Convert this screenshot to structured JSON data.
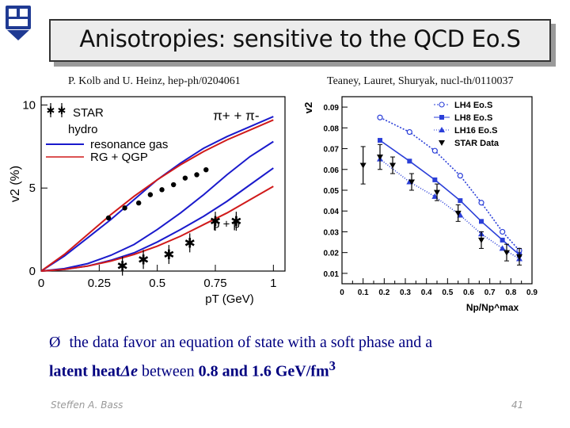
{
  "slide": {
    "title": "Anisotropies: sensitive to the QCD Eo.S",
    "cite_left": "P. Kolb and U. Heinz, hep-ph/0204061",
    "cite_right": "Teaney, Lauret, Shuryak, nucl-th/0110037",
    "caption": {
      "bullet": "Ø",
      "part1": "the data favor an equation of state with a soft phase and a",
      "part2a": "latent heat",
      "part2b": "Δe",
      "part2c": " between ",
      "part2d": "0.8 and 1.6 GeV/fm",
      "part2e": "3"
    },
    "footer_name": "Steffen A. Bass",
    "footer_page": "41"
  },
  "colors": {
    "title_text": "#111111",
    "caption": "#000080",
    "resonance_gas": "#1a1acc",
    "rg_qgp": "#d01a1a",
    "right_series": "#2b3fd8"
  },
  "chart_data": [
    {
      "type": "line",
      "ylabel": "v2 (%)",
      "xlabel": "pT (GeV)",
      "xlim": [
        0,
        1.05
      ],
      "ylim": [
        0,
        10.5
      ],
      "xticks": [
        {
          "v": 0,
          "label": "0"
        },
        {
          "v": 0.25,
          "label": "0.25"
        },
        {
          "v": 0.5,
          "label": "0.5"
        },
        {
          "v": 0.75,
          "label": "0.75"
        },
        {
          "v": 1.0,
          "label": "1"
        }
      ],
      "yticks": [
        {
          "v": 0,
          "label": "0"
        },
        {
          "v": 5,
          "label": "5"
        },
        {
          "v": 10,
          "label": "10"
        }
      ],
      "legend_title": "hydro",
      "legend_entries": [
        "STAR",
        "resonance gas",
        "RG + QGP"
      ],
      "annotations": [
        "π+ + π-",
        "p + p̄"
      ],
      "series": [
        {
          "name": "resonance gas",
          "kind": "pion",
          "style": "blue",
          "x": [
            0,
            0.1,
            0.2,
            0.3,
            0.4,
            0.5,
            0.6,
            0.7,
            0.8,
            0.9,
            1.0
          ],
          "y": [
            0,
            0.9,
            2.0,
            3.1,
            4.3,
            5.5,
            6.5,
            7.4,
            8.1,
            8.7,
            9.3
          ]
        },
        {
          "name": "RG + QGP",
          "kind": "pion",
          "style": "red",
          "x": [
            0,
            0.1,
            0.2,
            0.3,
            0.4,
            0.5,
            0.6,
            0.7,
            0.8,
            0.9,
            1.0
          ],
          "y": [
            0,
            1.0,
            2.2,
            3.4,
            4.5,
            5.5,
            6.4,
            7.2,
            7.9,
            8.5,
            9.1
          ]
        },
        {
          "name": "resonance gas",
          "kind": "proton",
          "style": "blue",
          "x": [
            0,
            0.1,
            0.2,
            0.3,
            0.4,
            0.5,
            0.6,
            0.7,
            0.8,
            0.9,
            1.0
          ],
          "y": [
            0,
            0.15,
            0.45,
            0.95,
            1.6,
            2.5,
            3.5,
            4.6,
            5.8,
            6.9,
            7.8
          ]
        },
        {
          "name": "resonance gas",
          "kind": "proton2",
          "style": "blue",
          "x": [
            0,
            0.1,
            0.2,
            0.3,
            0.4,
            0.5,
            0.6,
            0.7,
            0.8,
            0.9,
            1.0
          ],
          "y": [
            0,
            0.1,
            0.3,
            0.65,
            1.1,
            1.75,
            2.5,
            3.3,
            4.2,
            5.2,
            6.2
          ]
        },
        {
          "name": "RG + QGP",
          "kind": "proton",
          "style": "red",
          "x": [
            0,
            0.1,
            0.2,
            0.3,
            0.4,
            0.5,
            0.6,
            0.7,
            0.8,
            0.9,
            1.0
          ],
          "y": [
            0,
            0.1,
            0.3,
            0.6,
            1.0,
            1.5,
            2.1,
            2.8,
            3.5,
            4.3,
            5.1
          ]
        }
      ],
      "star_pion": {
        "x": [
          0.29,
          0.36,
          0.42,
          0.47,
          0.52,
          0.57,
          0.62,
          0.67,
          0.71
        ],
        "y": [
          3.2,
          3.8,
          4.1,
          4.6,
          4.9,
          5.2,
          5.6,
          5.8,
          6.1
        ]
      },
      "star_proton": {
        "x": [
          0.35,
          0.44,
          0.55,
          0.64,
          0.75,
          0.84
        ],
        "y": [
          0.3,
          0.7,
          1.0,
          1.7,
          3.0,
          3.0
        ]
      }
    },
    {
      "type": "line",
      "ylabel": "v2",
      "xlabel": "Np/Np^max",
      "xlim": [
        0,
        0.9
      ],
      "ylim": [
        0.005,
        0.095
      ],
      "xticks": [
        {
          "v": 0,
          "label": "0"
        },
        {
          "v": 0.1,
          "label": "0.1"
        },
        {
          "v": 0.2,
          "label": "0.2"
        },
        {
          "v": 0.3,
          "label": "0.3"
        },
        {
          "v": 0.4,
          "label": "0.4"
        },
        {
          "v": 0.5,
          "label": "0.5"
        },
        {
          "v": 0.6,
          "label": "0.6"
        },
        {
          "v": 0.7,
          "label": "0.7"
        },
        {
          "v": 0.8,
          "label": "0.8"
        },
        {
          "v": 0.9,
          "label": "0.9"
        }
      ],
      "yticks": [
        {
          "v": 0.01,
          "label": "0.01"
        },
        {
          "v": 0.02,
          "label": "0.02"
        },
        {
          "v": 0.03,
          "label": "0.03"
        },
        {
          "v": 0.04,
          "label": "0.04"
        },
        {
          "v": 0.05,
          "label": "0.05"
        },
        {
          "v": 0.06,
          "label": "0.06"
        },
        {
          "v": 0.07,
          "label": "0.07"
        },
        {
          "v": 0.08,
          "label": "0.08"
        },
        {
          "v": 0.09,
          "label": "0.09"
        }
      ],
      "series": [
        {
          "name": "LH4 Eo.S",
          "marker": "circle",
          "dash": "2,2",
          "x": [
            0.18,
            0.32,
            0.44,
            0.56,
            0.66,
            0.76,
            0.84
          ],
          "y": [
            0.085,
            0.078,
            0.069,
            0.057,
            0.044,
            0.03,
            0.021
          ]
        },
        {
          "name": "LH8 Eo.S",
          "marker": "square",
          "dash": "",
          "x": [
            0.18,
            0.32,
            0.44,
            0.56,
            0.66,
            0.76,
            0.84
          ],
          "y": [
            0.074,
            0.064,
            0.055,
            0.045,
            0.035,
            0.026,
            0.019
          ]
        },
        {
          "name": "LH16 Eo.S",
          "marker": "triangle",
          "dash": "1,2",
          "x": [
            0.18,
            0.32,
            0.44,
            0.56,
            0.66,
            0.76,
            0.84
          ],
          "y": [
            0.065,
            0.054,
            0.047,
            0.038,
            0.029,
            0.022,
            0.017
          ]
        }
      ],
      "star_data": {
        "name": "STAR Data",
        "x": [
          0.1,
          0.18,
          0.24,
          0.33,
          0.45,
          0.55,
          0.66,
          0.78,
          0.84
        ],
        "y": [
          0.062,
          0.066,
          0.062,
          0.054,
          0.049,
          0.039,
          0.026,
          0.02,
          0.018
        ],
        "err": [
          0.009,
          0.006,
          0.004,
          0.004,
          0.004,
          0.004,
          0.004,
          0.004,
          0.004
        ]
      }
    }
  ]
}
